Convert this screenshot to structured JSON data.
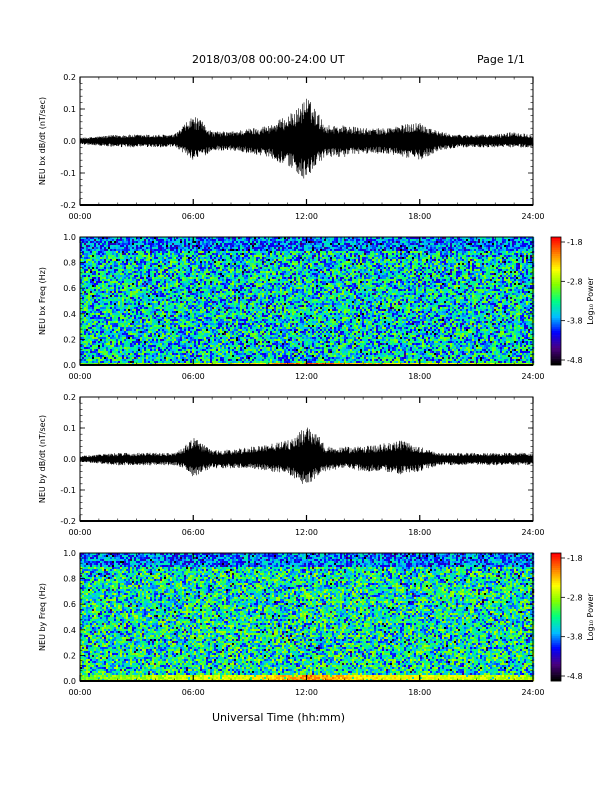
{
  "header": {
    "title": "2018/03/08  00:00-24:00 UT",
    "page": "Page 1/1"
  },
  "xaxis_title": "Universal Time (hh:mm)",
  "chart_data": [
    {
      "type": "line",
      "ylabel": "NEU bx dB/dt (nT/sec)",
      "ylim": [
        -0.2,
        0.2
      ],
      "yticks": [
        "0.2",
        "0.1",
        "0.0",
        "-0.1",
        "-0.2"
      ],
      "xticks": [
        "00:00",
        "06:00",
        "12:00",
        "18:00",
        "24:00"
      ],
      "xlim_hours": [
        0,
        24
      ],
      "color": "#000000",
      "envelope": {
        "hours": [
          0,
          2,
          4,
          5,
          5.5,
          6,
          6.5,
          7,
          8,
          9,
          10,
          11,
          11.5,
          12,
          12.5,
          13,
          14,
          15,
          16,
          17,
          18,
          19,
          20,
          21,
          22,
          23,
          24
        ],
        "max": [
          0.01,
          0.02,
          0.02,
          0.02,
          0.05,
          0.08,
          0.06,
          0.03,
          0.03,
          0.04,
          0.05,
          0.08,
          0.1,
          0.14,
          0.1,
          0.05,
          0.05,
          0.04,
          0.04,
          0.05,
          0.06,
          0.03,
          0.02,
          0.02,
          0.02,
          0.03,
          0.02
        ],
        "min": [
          -0.01,
          -0.02,
          -0.02,
          -0.02,
          -0.04,
          -0.06,
          -0.05,
          -0.03,
          -0.03,
          -0.04,
          -0.05,
          -0.08,
          -0.1,
          -0.13,
          -0.08,
          -0.05,
          -0.05,
          -0.04,
          -0.04,
          -0.05,
          -0.06,
          -0.03,
          -0.02,
          -0.02,
          -0.02,
          -0.02,
          -0.02
        ]
      }
    },
    {
      "type": "heatmap",
      "ylabel": "NEU bx Freq (Hz)",
      "ylim": [
        0,
        1.0
      ],
      "yticks": [
        "1.0",
        "0.8",
        "0.6",
        "0.4",
        "0.2",
        "0.0"
      ],
      "xticks": [
        "00:00",
        "06:00",
        "12:00",
        "18:00",
        "24:00"
      ],
      "xlim_hours": [
        0,
        24
      ],
      "colorbar": {
        "label": "Log₁₀ Power",
        "ticks": [
          "-1.8",
          "-2.8",
          "-3.8",
          "-4.8"
        ],
        "range": [
          -4.8,
          -1.8
        ]
      },
      "colorscale": [
        "#000000",
        "#4b0082",
        "#0000ff",
        "#00c0ff",
        "#00ff80",
        "#80ff00",
        "#ffff00",
        "#ff8000",
        "#ff0000"
      ],
      "background_level": -3.5,
      "low_freq_band": {
        "freq_max": 0.03,
        "hours": [
          0,
          6,
          9,
          12,
          15,
          18,
          24
        ],
        "level": [
          -3.0,
          -2.8,
          -2.6,
          -2.0,
          -2.4,
          -2.6,
          -2.9
        ]
      },
      "high_freq_band": {
        "freq_min": 0.9,
        "level": -3.8
      }
    },
    {
      "type": "line",
      "ylabel": "NEU by dB/dt (nT/sec)",
      "ylim": [
        -0.2,
        0.2
      ],
      "yticks": [
        "0.2",
        "0.1",
        "0.0",
        "-0.1",
        "-0.2"
      ],
      "xticks": [
        "00:00",
        "06:00",
        "12:00",
        "18:00",
        "24:00"
      ],
      "xlim_hours": [
        0,
        24
      ],
      "color": "#000000",
      "envelope": {
        "hours": [
          0,
          2,
          4,
          5,
          5.5,
          6,
          6.5,
          7,
          8,
          9,
          10,
          11,
          11.5,
          12,
          12.5,
          13,
          14,
          15,
          16,
          17,
          18,
          19,
          20,
          21,
          22,
          23,
          24
        ],
        "max": [
          0.01,
          0.02,
          0.02,
          0.02,
          0.04,
          0.07,
          0.05,
          0.03,
          0.03,
          0.04,
          0.05,
          0.06,
          0.08,
          0.11,
          0.1,
          0.04,
          0.04,
          0.04,
          0.05,
          0.06,
          0.04,
          0.02,
          0.02,
          0.02,
          0.02,
          0.02,
          0.02
        ],
        "min": [
          -0.01,
          -0.02,
          -0.02,
          -0.02,
          -0.03,
          -0.06,
          -0.04,
          -0.03,
          -0.03,
          -0.03,
          -0.04,
          -0.05,
          -0.07,
          -0.09,
          -0.06,
          -0.04,
          -0.03,
          -0.04,
          -0.04,
          -0.05,
          -0.04,
          -0.02,
          -0.02,
          -0.02,
          -0.02,
          -0.02,
          -0.02
        ]
      }
    },
    {
      "type": "heatmap",
      "ylabel": "NEU by Freq (Hz)",
      "ylim": [
        0,
        1.0
      ],
      "yticks": [
        "1.0",
        "0.8",
        "0.6",
        "0.4",
        "0.2",
        "0.0"
      ],
      "xticks": [
        "00:00",
        "06:00",
        "12:00",
        "18:00",
        "24:00"
      ],
      "xlim_hours": [
        0,
        24
      ],
      "colorbar": {
        "label": "Log₁₀ Power",
        "ticks": [
          "-1.8",
          "-2.8",
          "-3.8",
          "-4.8"
        ],
        "range": [
          -4.8,
          -1.8
        ]
      },
      "colorscale": [
        "#000000",
        "#4b0082",
        "#0000ff",
        "#00c0ff",
        "#00ff80",
        "#80ff00",
        "#ffff00",
        "#ff8000",
        "#ff0000"
      ],
      "background_level": -3.4,
      "low_freq_band": {
        "freq_max": 0.05,
        "hours": [
          0,
          6,
          9,
          12,
          15,
          18,
          24
        ],
        "level": [
          -3.0,
          -2.7,
          -2.6,
          -2.2,
          -2.5,
          -2.6,
          -2.8
        ]
      },
      "high_freq_band": {
        "freq_min": 0.9,
        "level": -3.8
      }
    }
  ]
}
